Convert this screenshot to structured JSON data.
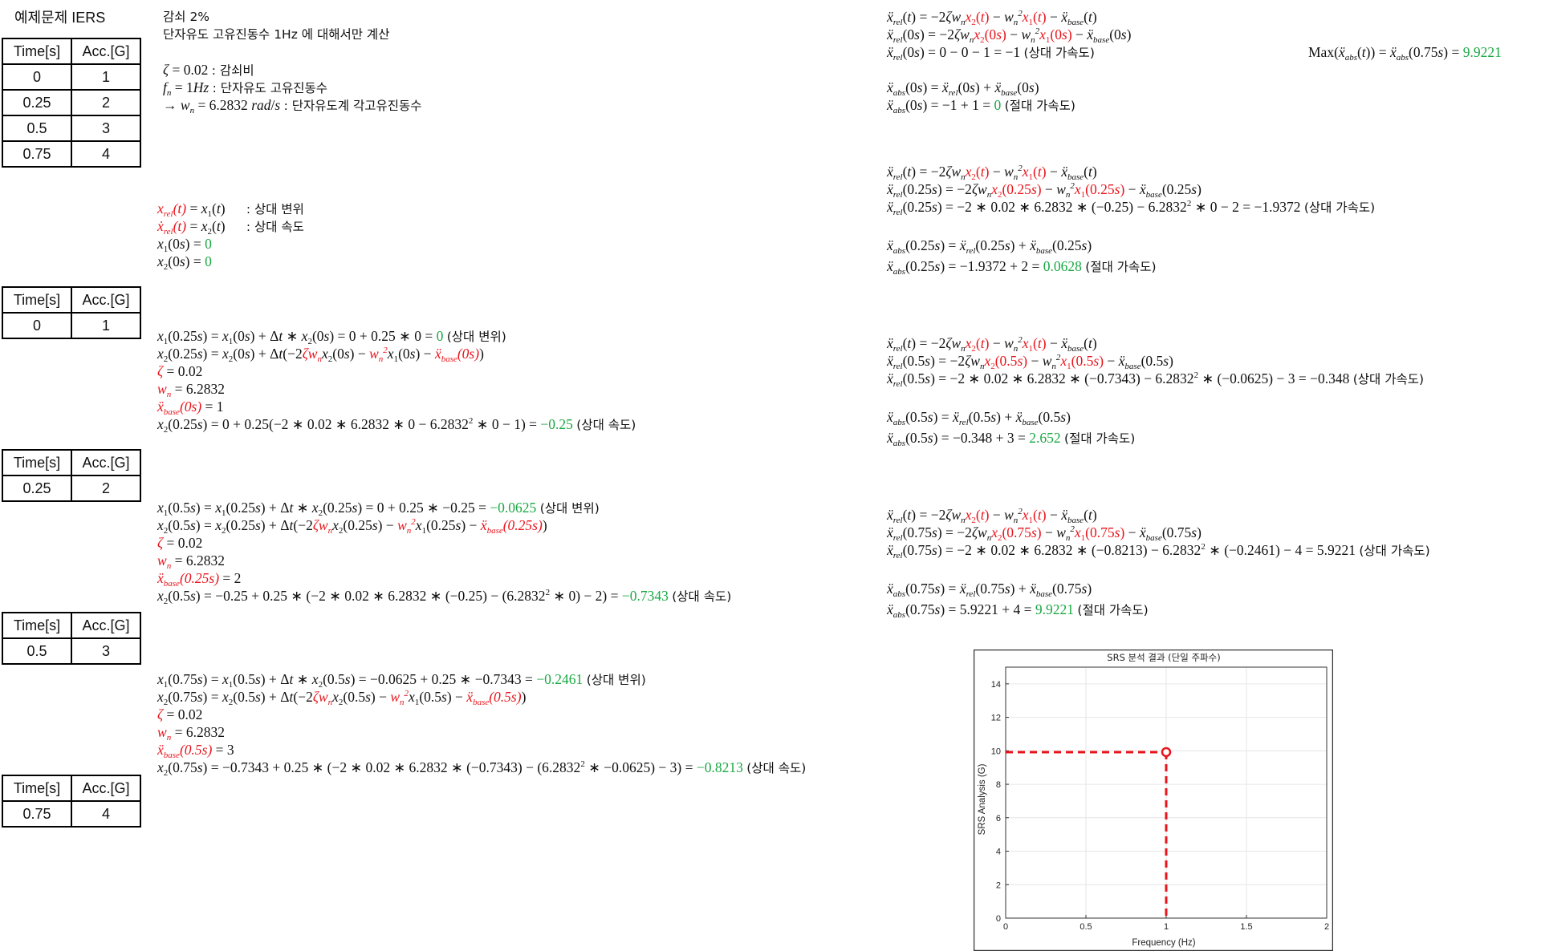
{
  "header": {
    "title": "예제문제 IERS",
    "damping_line": "감쇠 2%",
    "scope_line": "단자유도 고유진동수 1Hz 에 대해서만 계산",
    "zeta_def": "ζ = 0.02 : 감쇠비",
    "fn_def": "f_n = 1Hz : 단자유도 고유진동수",
    "wn_def": "→ w_n = 6.2832 rad/s : 단자유도계 각고유진동수"
  },
  "tables": {
    "header_time": "Time[s]",
    "header_acc": "Acc.[G]",
    "full": [
      {
        "t": "0",
        "a": "1"
      },
      {
        "t": "0.25",
        "a": "2"
      },
      {
        "t": "0.5",
        "a": "3"
      },
      {
        "t": "0.75",
        "a": "4"
      }
    ],
    "single": [
      {
        "t": "0",
        "a": "1"
      },
      {
        "t": "0.25",
        "a": "2"
      },
      {
        "t": "0.5",
        "a": "3"
      },
      {
        "t": "0.75",
        "a": "4"
      }
    ]
  },
  "definitions": {
    "rel_disp_label": ": 상대 변위",
    "rel_vel_label": ": 상대 속도",
    "x1_0_val": "0",
    "x2_0_val": "0"
  },
  "left_steps": [
    {
      "x1_val": "0",
      "x2_val": "−0.25",
      "zeta": "0.02",
      "wn": "6.2832",
      "base": "1"
    },
    {
      "x1_val": "−0.0625",
      "x2_val": "−0.7343",
      "zeta": "0.02",
      "wn": "6.2832",
      "base": "2"
    },
    {
      "x1_val": "−0.2461",
      "x2_val": "−0.8213",
      "zeta": "0.02",
      "wn": "6.2832",
      "base": "3"
    }
  ],
  "labels": {
    "rel_disp": "(상대 변위)",
    "rel_vel": "(상대 속도)",
    "rel_acc": "(상대 가속도)",
    "abs_acc": "(절대 가속도)"
  },
  "right_steps": [
    {
      "rel_val": "−1",
      "abs_val": "0"
    },
    {
      "rel_val": "−1.9372",
      "abs_val": "0.0628"
    },
    {
      "rel_val": "−0.348",
      "abs_val": "2.652"
    },
    {
      "rel_val": "5.9221",
      "abs_val": "9.9221"
    }
  ],
  "max_result": "9.9221",
  "chart_data": {
    "type": "line",
    "title": "SRS 분석 결과 (단일 주파수)",
    "xlabel": "Frequency (Hz)",
    "ylabel": "SRS Analysis (G)",
    "xlim": [
      0,
      2
    ],
    "ylim": [
      0,
      15
    ],
    "xticks": [
      "0",
      "0.5",
      "1",
      "1.5",
      "2"
    ],
    "yticks": [
      "0",
      "2",
      "4",
      "6",
      "8",
      "10",
      "12",
      "14"
    ],
    "grid": true,
    "points": [
      {
        "x": 1,
        "y": 9.9221
      }
    ],
    "guide_lines": "red dashed lines from axes to point",
    "colors": {
      "marker": "#e8141b",
      "guide": "#e8141b"
    }
  }
}
